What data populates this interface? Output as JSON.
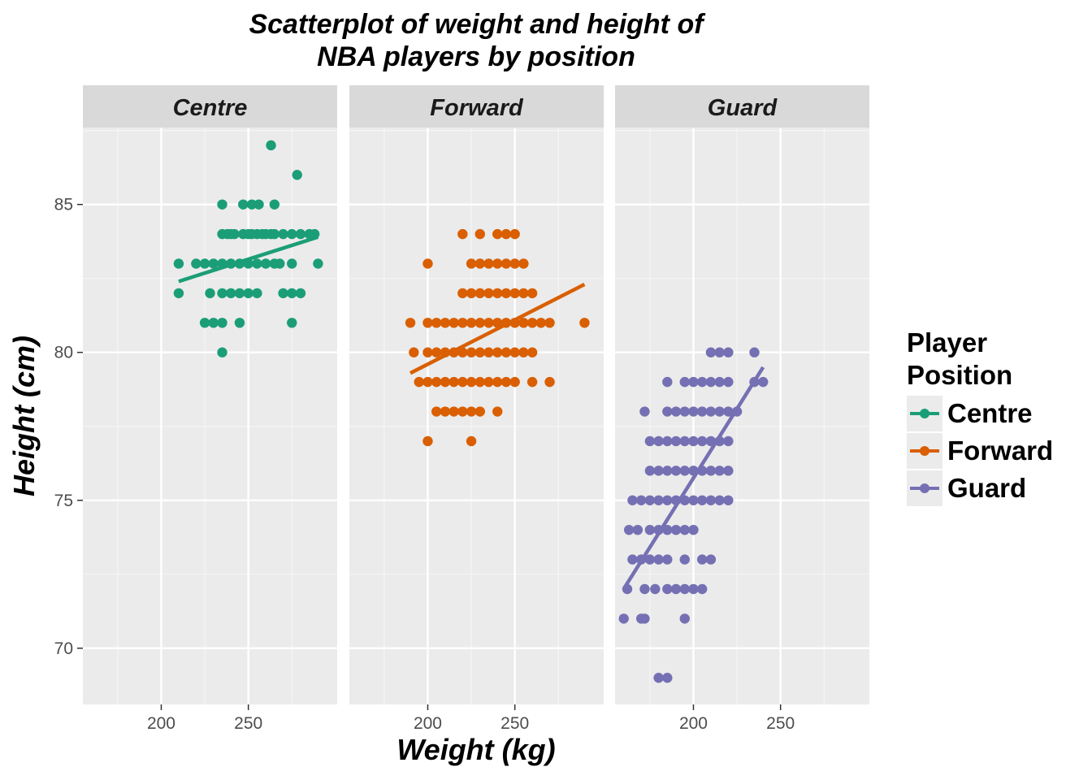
{
  "title_lines": [
    "Scatterplot of weight and height of",
    "NBA players by position"
  ],
  "chart_data": {
    "type": "scatter",
    "title": "Scatterplot of weight and height of NBA players by position",
    "xlabel": "Weight (kg)",
    "ylabel": "Height (cm)",
    "xlim": [
      155,
      301
    ],
    "ylim": [
      68.1,
      87.6
    ],
    "xticks": [
      200,
      250
    ],
    "yticks": [
      70,
      75,
      80,
      85
    ],
    "grid": true,
    "legend_position": "right",
    "legend_title": "Player Position",
    "facets": [
      {
        "name": "Centre",
        "color": "#1b9e77",
        "trend": {
          "x": [
            210,
            290
          ],
          "y": [
            82.4,
            83.9
          ]
        },
        "points": [
          [
            263,
            87
          ],
          [
            278,
            86
          ],
          [
            235,
            85
          ],
          [
            247,
            85
          ],
          [
            252,
            85
          ],
          [
            256,
            85
          ],
          [
            265,
            85
          ],
          [
            235,
            84
          ],
          [
            238,
            84
          ],
          [
            240,
            84
          ],
          [
            242,
            84
          ],
          [
            247,
            84
          ],
          [
            250,
            84
          ],
          [
            252,
            84
          ],
          [
            255,
            84
          ],
          [
            258,
            84
          ],
          [
            260,
            84
          ],
          [
            263,
            84
          ],
          [
            265,
            84
          ],
          [
            270,
            84
          ],
          [
            275,
            84
          ],
          [
            280,
            84
          ],
          [
            285,
            84
          ],
          [
            288,
            84
          ],
          [
            210,
            83
          ],
          [
            220,
            83
          ],
          [
            225,
            83
          ],
          [
            230,
            83
          ],
          [
            235,
            83
          ],
          [
            240,
            83
          ],
          [
            245,
            83
          ],
          [
            250,
            83
          ],
          [
            255,
            83
          ],
          [
            260,
            83
          ],
          [
            265,
            83
          ],
          [
            268,
            83
          ],
          [
            275,
            83
          ],
          [
            290,
            83
          ],
          [
            210,
            82
          ],
          [
            228,
            82
          ],
          [
            235,
            82
          ],
          [
            240,
            82
          ],
          [
            245,
            82
          ],
          [
            250,
            82
          ],
          [
            255,
            82
          ],
          [
            270,
            82
          ],
          [
            275,
            82
          ],
          [
            280,
            82
          ],
          [
            225,
            81
          ],
          [
            230,
            81
          ],
          [
            235,
            81
          ],
          [
            245,
            81
          ],
          [
            275,
            81
          ],
          [
            235,
            80
          ]
        ]
      },
      {
        "name": "Forward",
        "color": "#d95f02",
        "trend": {
          "x": [
            190,
            290
          ],
          "y": [
            79.3,
            82.3
          ]
        },
        "points": [
          [
            220,
            84
          ],
          [
            230,
            84
          ],
          [
            240,
            84
          ],
          [
            245,
            84
          ],
          [
            250,
            84
          ],
          [
            200,
            83
          ],
          [
            225,
            83
          ],
          [
            230,
            83
          ],
          [
            235,
            83
          ],
          [
            240,
            83
          ],
          [
            245,
            83
          ],
          [
            250,
            83
          ],
          [
            255,
            83
          ],
          [
            220,
            82
          ],
          [
            225,
            82
          ],
          [
            230,
            82
          ],
          [
            235,
            82
          ],
          [
            240,
            82
          ],
          [
            245,
            82
          ],
          [
            250,
            82
          ],
          [
            255,
            82
          ],
          [
            260,
            82
          ],
          [
            190,
            81
          ],
          [
            200,
            81
          ],
          [
            205,
            81
          ],
          [
            210,
            81
          ],
          [
            215,
            81
          ],
          [
            220,
            81
          ],
          [
            225,
            81
          ],
          [
            230,
            81
          ],
          [
            235,
            81
          ],
          [
            240,
            81
          ],
          [
            245,
            81
          ],
          [
            250,
            81
          ],
          [
            255,
            81
          ],
          [
            260,
            81
          ],
          [
            265,
            81
          ],
          [
            270,
            81
          ],
          [
            290,
            81
          ],
          [
            192,
            80
          ],
          [
            200,
            80
          ],
          [
            205,
            80
          ],
          [
            210,
            80
          ],
          [
            215,
            80
          ],
          [
            220,
            80
          ],
          [
            225,
            80
          ],
          [
            230,
            80
          ],
          [
            235,
            80
          ],
          [
            240,
            80
          ],
          [
            245,
            80
          ],
          [
            250,
            80
          ],
          [
            255,
            80
          ],
          [
            260,
            80
          ],
          [
            195,
            79
          ],
          [
            200,
            79
          ],
          [
            205,
            79
          ],
          [
            210,
            79
          ],
          [
            215,
            79
          ],
          [
            220,
            79
          ],
          [
            225,
            79
          ],
          [
            230,
            79
          ],
          [
            235,
            79
          ],
          [
            240,
            79
          ],
          [
            245,
            79
          ],
          [
            250,
            79
          ],
          [
            260,
            79
          ],
          [
            270,
            79
          ],
          [
            205,
            78
          ],
          [
            210,
            78
          ],
          [
            215,
            78
          ],
          [
            220,
            78
          ],
          [
            225,
            78
          ],
          [
            230,
            78
          ],
          [
            240,
            78
          ],
          [
            200,
            77
          ],
          [
            225,
            77
          ]
        ]
      },
      {
        "name": "Guard",
        "color": "#7570b3",
        "trend": {
          "x": [
            161,
            240
          ],
          "y": [
            72.1,
            79.5
          ]
        },
        "points": [
          [
            210,
            80
          ],
          [
            215,
            80
          ],
          [
            220,
            80
          ],
          [
            235,
            80
          ],
          [
            185,
            79
          ],
          [
            195,
            79
          ],
          [
            200,
            79
          ],
          [
            205,
            79
          ],
          [
            210,
            79
          ],
          [
            215,
            79
          ],
          [
            220,
            79
          ],
          [
            235,
            79
          ],
          [
            240,
            79
          ],
          [
            172,
            78
          ],
          [
            185,
            78
          ],
          [
            190,
            78
          ],
          [
            195,
            78
          ],
          [
            200,
            78
          ],
          [
            205,
            78
          ],
          [
            210,
            78
          ],
          [
            215,
            78
          ],
          [
            220,
            78
          ],
          [
            225,
            78
          ],
          [
            175,
            77
          ],
          [
            180,
            77
          ],
          [
            185,
            77
          ],
          [
            190,
            77
          ],
          [
            195,
            77
          ],
          [
            200,
            77
          ],
          [
            205,
            77
          ],
          [
            210,
            77
          ],
          [
            215,
            77
          ],
          [
            220,
            77
          ],
          [
            175,
            76
          ],
          [
            180,
            76
          ],
          [
            185,
            76
          ],
          [
            190,
            76
          ],
          [
            195,
            76
          ],
          [
            200,
            76
          ],
          [
            205,
            76
          ],
          [
            210,
            76
          ],
          [
            215,
            76
          ],
          [
            220,
            76
          ],
          [
            165,
            75
          ],
          [
            170,
            75
          ],
          [
            175,
            75
          ],
          [
            180,
            75
          ],
          [
            185,
            75
          ],
          [
            190,
            75
          ],
          [
            195,
            75
          ],
          [
            200,
            75
          ],
          [
            205,
            75
          ],
          [
            210,
            75
          ],
          [
            215,
            75
          ],
          [
            220,
            75
          ],
          [
            163,
            74
          ],
          [
            168,
            74
          ],
          [
            175,
            74
          ],
          [
            180,
            74
          ],
          [
            185,
            74
          ],
          [
            190,
            74
          ],
          [
            195,
            74
          ],
          [
            200,
            74
          ],
          [
            165,
            73
          ],
          [
            170,
            73
          ],
          [
            175,
            73
          ],
          [
            180,
            73
          ],
          [
            185,
            73
          ],
          [
            195,
            73
          ],
          [
            205,
            73
          ],
          [
            210,
            73
          ],
          [
            162,
            72
          ],
          [
            172,
            72
          ],
          [
            178,
            72
          ],
          [
            185,
            72
          ],
          [
            190,
            72
          ],
          [
            195,
            72
          ],
          [
            200,
            72
          ],
          [
            205,
            72
          ],
          [
            160,
            71
          ],
          [
            170,
            71
          ],
          [
            172,
            71
          ],
          [
            195,
            71
          ],
          [
            180,
            69
          ],
          [
            185,
            69
          ]
        ]
      }
    ]
  }
}
